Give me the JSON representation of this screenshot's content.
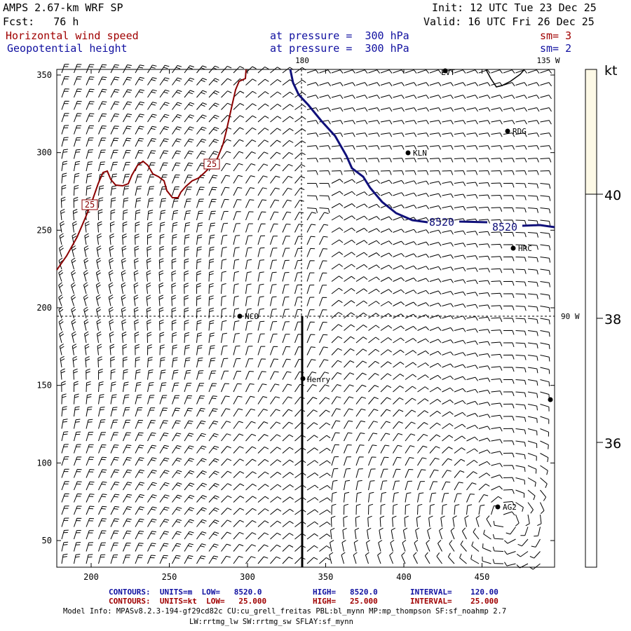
{
  "header": {
    "model": "AMPS 2.67-km WRF SP",
    "init": "Init: 12 UTC Tue 23 Dec 25",
    "fcst": "Fcst:   76 h",
    "valid": "Valid: 16 UTC Fri 26 Dec 25"
  },
  "fields": [
    {
      "name": "Horizontal wind speed",
      "level": "at pressure =  300 hPa",
      "sm": "sm= 3",
      "color": "#a00000"
    },
    {
      "name": "Geopotential height",
      "level": "at pressure =  300 hPa",
      "sm": "sm= 2",
      "color": "#1010a0"
    }
  ],
  "map": {
    "lon_180": "180",
    "lon_135w": "135 W",
    "lon_90w": "90 W",
    "x_ticks": [
      "200",
      "250",
      "300",
      "350",
      "400",
      "450"
    ],
    "y_ticks": [
      "350",
      "300",
      "250",
      "200",
      "150",
      "100",
      "50"
    ],
    "contour_labels": {
      "speed": "25",
      "height": "8520"
    },
    "stations": [
      {
        "name": "LVT"
      },
      {
        "name": "RDG"
      },
      {
        "name": "KLN"
      },
      {
        "name": "HRC"
      },
      {
        "name": "NCO"
      },
      {
        "name": "Henry"
      },
      {
        "name": "AG2"
      },
      {
        "name": ""
      }
    ]
  },
  "colorbar": {
    "unit": "kt",
    "ticks": [
      "40",
      "38",
      "36"
    ],
    "fill_color": "#fdf9e6"
  },
  "footer": {
    "line1_left": "CONTOURS:  UNITS=m  LOW=   8520.0",
    "line1_mid": "HIGH=   8520.0",
    "line1_right": "INTERVAL=    120.00",
    "line2_left": "CONTOURS:  UNITS=kt  LOW=   25.000",
    "line2_mid": "HIGH=   25.000",
    "line2_right": "INTERVAL=    25.000",
    "model_info": "Model Info: MPASv8.2.3-194-gf29cd82c CU:cu_grell_freitas PBL:bl_mynn MP:mp_thompson SF:sf_noahmp 2.7",
    "model_info2": "LW:rrtmg_lw SW:rrtmg_sw SFLAY:sf_mynn"
  }
}
